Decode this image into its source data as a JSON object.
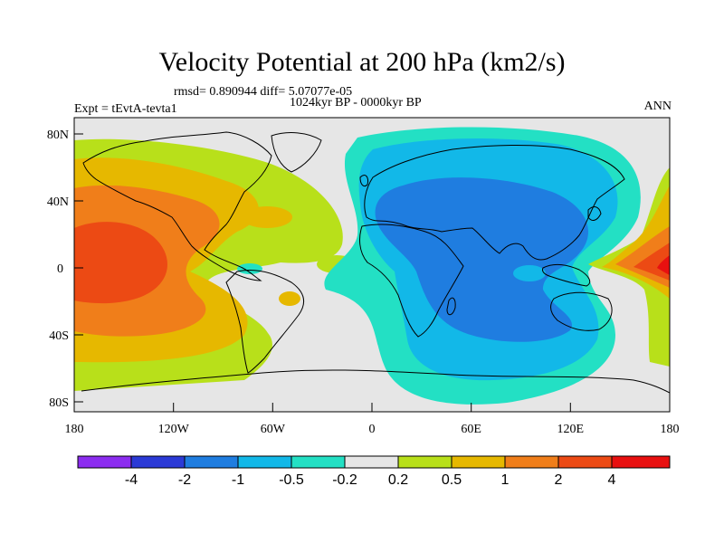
{
  "title": "Velocity Potential at 200 hPa (km2/s)",
  "stats": "rmsd= 0.890944  diff= 5.07077e-05",
  "period": "1024kyr BP - 0000kyr BP",
  "expt": "Expt = tEvtA-tevta1",
  "season": "ANN",
  "y_ticks": [
    "80N",
    "40N",
    "0",
    "40S",
    "80S"
  ],
  "x_ticks": [
    "180",
    "120W",
    "60W",
    "0",
    "60E",
    "120E",
    "180"
  ],
  "colors": {
    "c0": "#8c2df0",
    "c1": "#2b3ad6",
    "c2": "#1f7de0",
    "c3": "#12b8e8",
    "c4": "#23e0c4",
    "c5": "#e6e6e6",
    "c6": "#b8e01a",
    "c7": "#e6b800",
    "c8": "#f07e1a",
    "c9": "#ec4a14",
    "c10": "#e81010"
  },
  "colorbar": {
    "labels": [
      "-4",
      "-2",
      "-1",
      "-0.5",
      "-0.2",
      "0.2",
      "0.5",
      "1",
      "2",
      "4"
    ]
  }
}
